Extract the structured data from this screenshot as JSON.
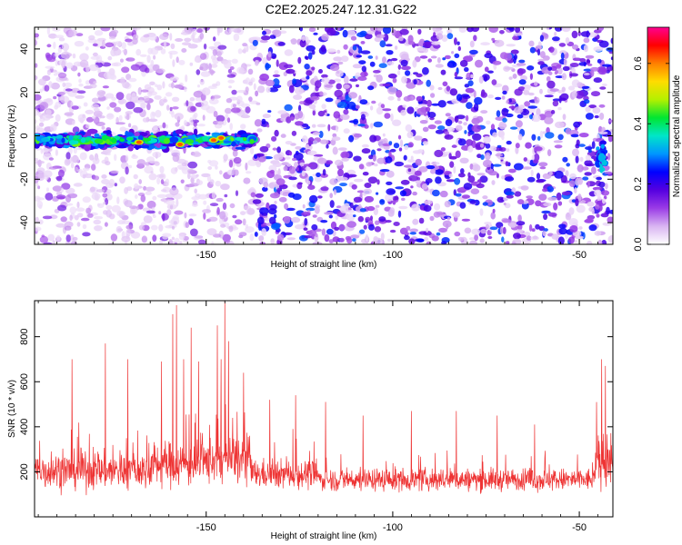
{
  "figure": {
    "title": "C2E2.2025.247.12.31.G22"
  },
  "chart_data": [
    {
      "type": "heatmap",
      "name": "spectrogram",
      "xlabel": "Height of straight line (km)",
      "ylabel": "Frequency (Hz)",
      "xlim": [
        -196,
        -41
      ],
      "ylim": [
        -50,
        50
      ],
      "xticks": [
        -150,
        -100,
        -50
      ],
      "yticks": [
        -40,
        -20,
        0,
        20,
        40
      ],
      "signal_band": {
        "x_start": -196,
        "x_end": -137,
        "frequency": -2,
        "peak_at": [
          [
            -168,
            -3
          ],
          [
            -157,
            -4
          ],
          [
            -148,
            -2
          ],
          [
            -146,
            -1
          ]
        ],
        "late_feature": {
          "x": -44,
          "frequency": -10
        }
      },
      "colorbar": {
        "label": "Normalized spectral amplitude",
        "range": [
          0,
          0.72
        ],
        "ticks": [
          0.0,
          0.2,
          0.4,
          0.6
        ],
        "colors": [
          "#ffffff",
          "#d9b5f2",
          "#9a3be6",
          "#5500e0",
          "#0000ff",
          "#0096ff",
          "#00e6c8",
          "#00e632",
          "#b4f000",
          "#ffdc00",
          "#ff8000",
          "#ff0000",
          "#ff0090"
        ]
      }
    },
    {
      "type": "line",
      "name": "snr",
      "xlabel": "Height of straight line (km)",
      "ylabel": "SNR (10 * v/v)",
      "xlim": [
        -196,
        -41
      ],
      "ylim": [
        0,
        960
      ],
      "xticks": [
        -150,
        -100,
        -50
      ],
      "yticks": [
        200,
        400,
        600,
        800
      ],
      "color": "#ee3333",
      "segments": [
        {
          "x_from": -196,
          "x_to": -165,
          "mean": 205,
          "spread": 90
        },
        {
          "x_from": -165,
          "x_to": -150,
          "mean": 235,
          "spread": 110
        },
        {
          "x_from": -150,
          "x_to": -138,
          "mean": 255,
          "spread": 120
        },
        {
          "x_from": -138,
          "x_to": -120,
          "mean": 190,
          "spread": 70
        },
        {
          "x_from": -120,
          "x_to": -46,
          "mean": 165,
          "spread": 55
        },
        {
          "x_from": -46,
          "x_to": -41,
          "mean": 240,
          "spread": 110
        }
      ],
      "spikes": [
        [
          -186,
          700
        ],
        [
          -177,
          770
        ],
        [
          -171,
          700
        ],
        [
          -162,
          690
        ],
        [
          -159,
          900
        ],
        [
          -158,
          940
        ],
        [
          -156,
          700
        ],
        [
          -154,
          840
        ],
        [
          -152,
          690
        ],
        [
          -147,
          850
        ],
        [
          -146,
          700
        ],
        [
          -145,
          960
        ],
        [
          -144,
          780
        ],
        [
          -140,
          640
        ],
        [
          -133,
          520
        ],
        [
          -126,
          540
        ],
        [
          -118,
          510
        ],
        [
          -108,
          450
        ],
        [
          -95,
          470
        ],
        [
          -83,
          470
        ],
        [
          -72,
          450
        ],
        [
          -62,
          410
        ],
        [
          -44,
          700
        ],
        [
          -43,
          670
        ]
      ]
    }
  ]
}
